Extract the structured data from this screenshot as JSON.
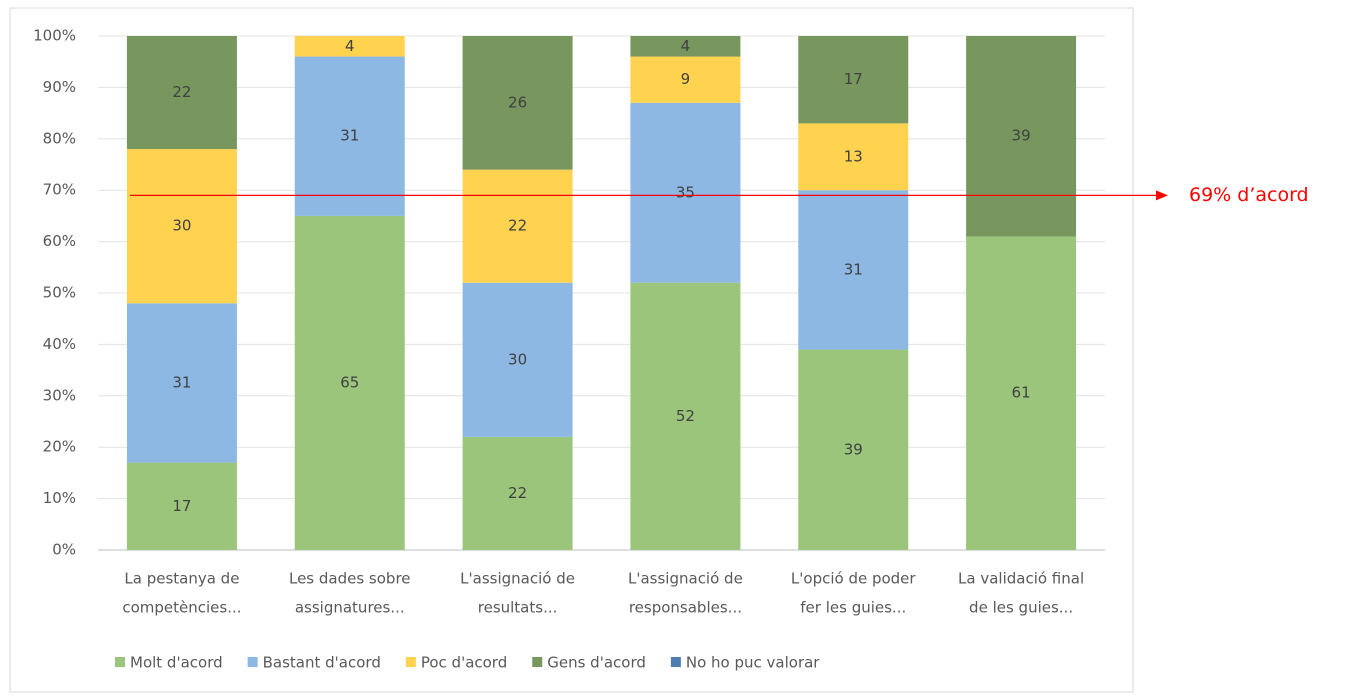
{
  "chart_data": {
    "type": "stacked_bar",
    "categories": [
      [
        "La pestanya de",
        "competències..."
      ],
      [
        "Les dades sobre",
        "assignatures..."
      ],
      [
        "L'assignació de",
        "resultats..."
      ],
      [
        "L'assignació de",
        "responsables..."
      ],
      [
        "L'opció de poder",
        "fer les guies..."
      ],
      [
        "La validació final",
        "de les guies..."
      ]
    ],
    "series": [
      {
        "name": "Molt d'acord",
        "color": "#9cc57c",
        "values": [
          17,
          65,
          22,
          52,
          39,
          61
        ]
      },
      {
        "name": "Bastant d'acord",
        "color": "#8db8e3",
        "values": [
          31,
          31,
          30,
          35,
          31,
          0
        ]
      },
      {
        "name": "Poc d'acord",
        "color": "#ffd24f",
        "values": [
          30,
          4,
          22,
          9,
          13,
          0
        ]
      },
      {
        "name": "Gens d'acord",
        "color": "#77975f",
        "values": [
          22,
          0,
          26,
          4,
          17,
          39
        ]
      },
      {
        "name": "No ho puc valorar",
        "color": "#4f7db0",
        "values": [
          0,
          0,
          0,
          0,
          0,
          0
        ]
      }
    ],
    "ylim": [
      0,
      100
    ],
    "yticks": [
      {
        "value": 0,
        "label": "0%"
      },
      {
        "value": 10,
        "label": "10%"
      },
      {
        "value": 20,
        "label": "20%"
      },
      {
        "value": 30,
        "label": "30%"
      },
      {
        "value": 40,
        "label": "40%"
      },
      {
        "value": 50,
        "label": "50%"
      },
      {
        "value": 60,
        "label": "60%"
      },
      {
        "value": 70,
        "label": "70%"
      },
      {
        "value": 80,
        "label": "80%"
      },
      {
        "value": 90,
        "label": "90%"
      },
      {
        "value": 100,
        "label": "100%"
      }
    ],
    "grid": true,
    "legend": "bottom",
    "annotation": {
      "value": 69,
      "label": "69% d’acord",
      "color": "#ff0000"
    }
  }
}
